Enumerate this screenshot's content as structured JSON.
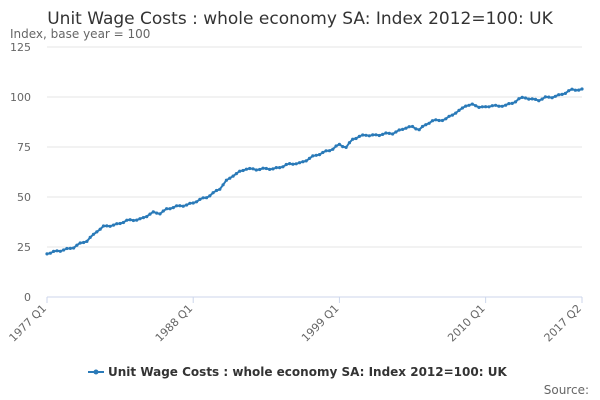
{
  "chart_data": {
    "type": "line",
    "title": "Unit Wage Costs : whole economy SA: Index 2012=100: UK",
    "ylabel": "Index, base year = 100",
    "xlabel": "",
    "ylim": [
      0,
      125
    ],
    "yticks": [
      0,
      25,
      50,
      75,
      100,
      125
    ],
    "x_tick_labels": [
      "1977 Q1",
      "1988 Q1",
      "1999 Q1",
      "2010 Q1",
      "2017 Q2"
    ],
    "grid": true,
    "legend_position": "bottom",
    "color": "#2a7ab8",
    "source_label": "Source:",
    "series": [
      {
        "name": "Unit Wage Costs : whole economy SA: Index 2012=100: UK",
        "anchors": [
          [
            "1977 Q1",
            22
          ],
          [
            "1978 Q1",
            23
          ],
          [
            "1979 Q1",
            25
          ],
          [
            "1980 Q1",
            28
          ],
          [
            "1980 Q4",
            33
          ],
          [
            "1981 Q2",
            35
          ],
          [
            "1982 Q1",
            36
          ],
          [
            "1983 Q1",
            38
          ],
          [
            "1984 Q1",
            39
          ],
          [
            "1985 Q1",
            42
          ],
          [
            "1985 Q3",
            42
          ],
          [
            "1986 Q1",
            44
          ],
          [
            "1987 Q1",
            45.5
          ],
          [
            "1988 Q1",
            47
          ],
          [
            "1989 Q1",
            50
          ],
          [
            "1990 Q1",
            54
          ],
          [
            "1990 Q3",
            58
          ],
          [
            "1991 Q1",
            61
          ],
          [
            "1992 Q1",
            64
          ],
          [
            "1993 Q1",
            64
          ],
          [
            "1994 Q1",
            64
          ],
          [
            "1995 Q1",
            66
          ],
          [
            "1996 Q1",
            67
          ],
          [
            "1997 Q1",
            70
          ],
          [
            "1998 Q1",
            73
          ],
          [
            "1998 Q3",
            74
          ],
          [
            "1999 Q1",
            76
          ],
          [
            "1999 Q3",
            75
          ],
          [
            "2000 Q1",
            79
          ],
          [
            "2001 Q1",
            81
          ],
          [
            "2002 Q1",
            81
          ],
          [
            "2003 Q1",
            82
          ],
          [
            "2004 Q1",
            84.5
          ],
          [
            "2004 Q3",
            85
          ],
          [
            "2005 Q1",
            84
          ],
          [
            "2005 Q3",
            86
          ],
          [
            "2006 Q1",
            88
          ],
          [
            "2007 Q1",
            89
          ],
          [
            "2008 Q1",
            93
          ],
          [
            "2008 Q3",
            96
          ],
          [
            "2009 Q1",
            96
          ],
          [
            "2009 Q3",
            95
          ],
          [
            "2010 Q1",
            95
          ],
          [
            "2010 Q3",
            96
          ],
          [
            "2011 Q1",
            95
          ],
          [
            "2011 Q3",
            96
          ],
          [
            "2012 Q1",
            97
          ],
          [
            "2012 Q3",
            99
          ],
          [
            "2013 Q1",
            99.5
          ],
          [
            "2013 Q3",
            99
          ],
          [
            "2014 Q1",
            98.5
          ],
          [
            "2014 Q3",
            99.5
          ],
          [
            "2015 Q1",
            100
          ],
          [
            "2015 Q3",
            101
          ],
          [
            "2016 Q1",
            102
          ],
          [
            "2016 Q3",
            103.5
          ],
          [
            "2017 Q2",
            104
          ]
        ]
      }
    ]
  }
}
